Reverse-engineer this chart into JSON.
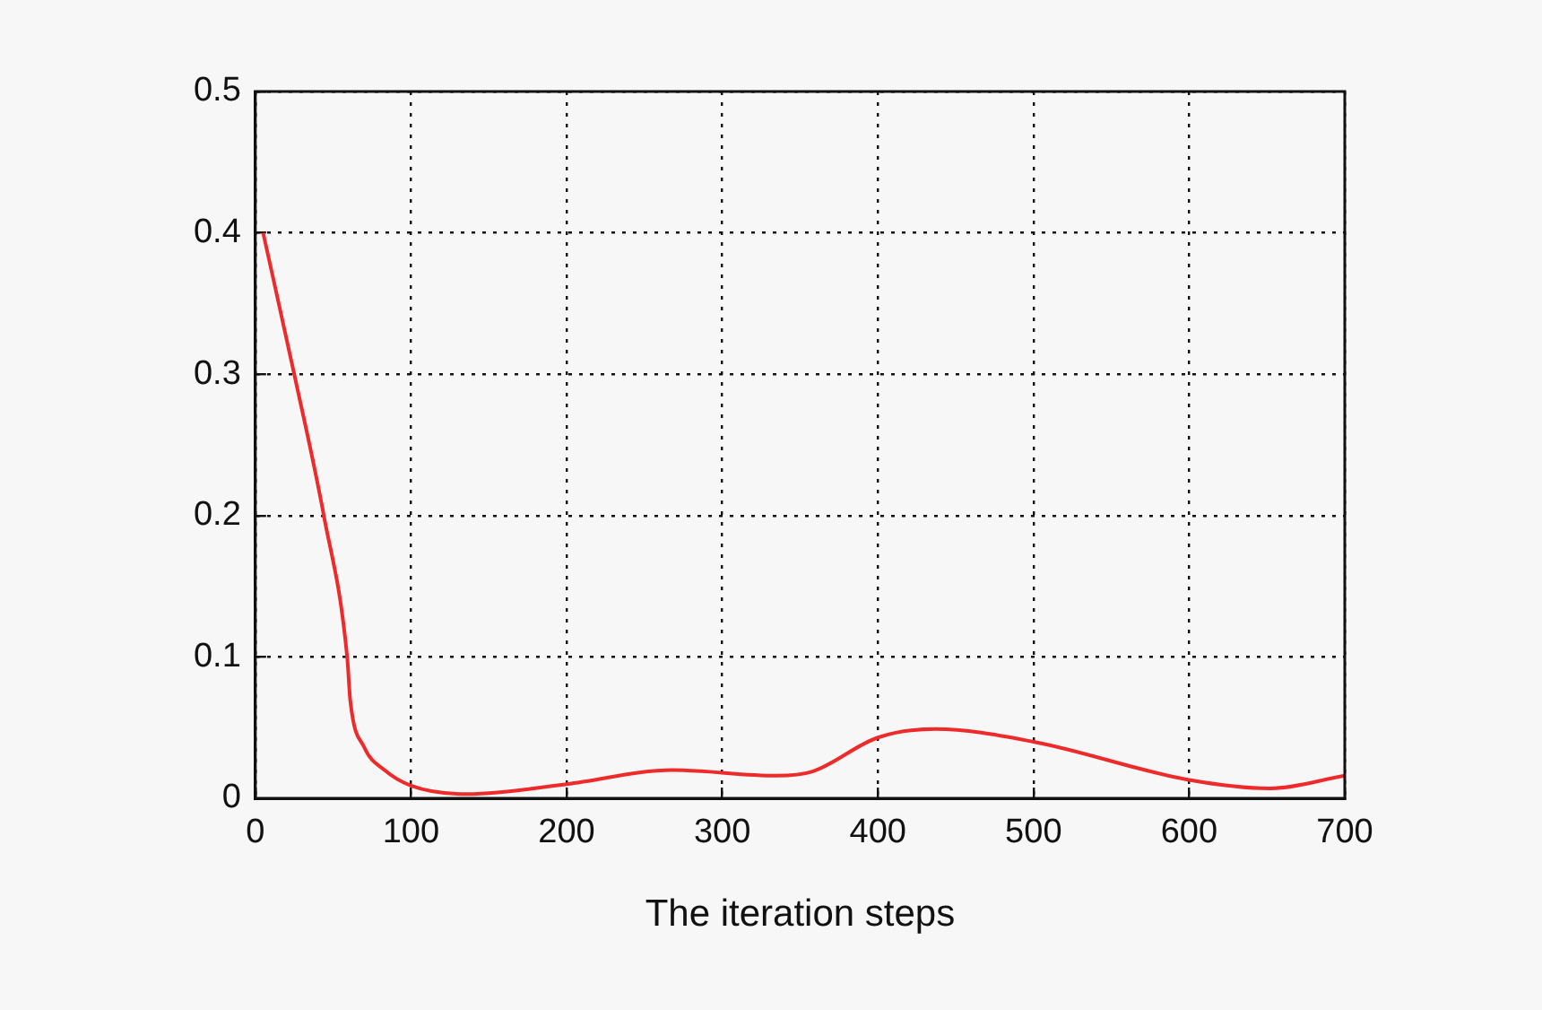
{
  "chart_data": {
    "type": "line",
    "xlabel": "The iteration steps",
    "x": [
      5,
      25,
      44,
      59,
      61,
      70,
      83,
      100,
      136,
      200,
      268,
      335,
      358,
      400,
      437,
      500,
      600,
      652,
      700
    ],
    "series": [
      {
        "color": "#ee2a2a",
        "values": [
          0.4,
          0.3,
          0.2,
          0.1,
          0.069,
          0.036,
          0.02,
          0.009,
          0.003,
          0.01,
          0.02,
          0.016,
          0.019,
          0.043,
          0.049,
          0.04,
          0.013,
          0.007,
          0.016
        ]
      }
    ],
    "xlim": [
      0,
      700
    ],
    "xticks": [
      0,
      100,
      200,
      300,
      400,
      500,
      600,
      700
    ],
    "ylim": [
      0,
      0.5
    ],
    "yticks": [
      0,
      0.1,
      0.2,
      0.3,
      0.4,
      0.5
    ],
    "grid": true,
    "line_style": "solid",
    "marker": "none",
    "legend": false
  }
}
